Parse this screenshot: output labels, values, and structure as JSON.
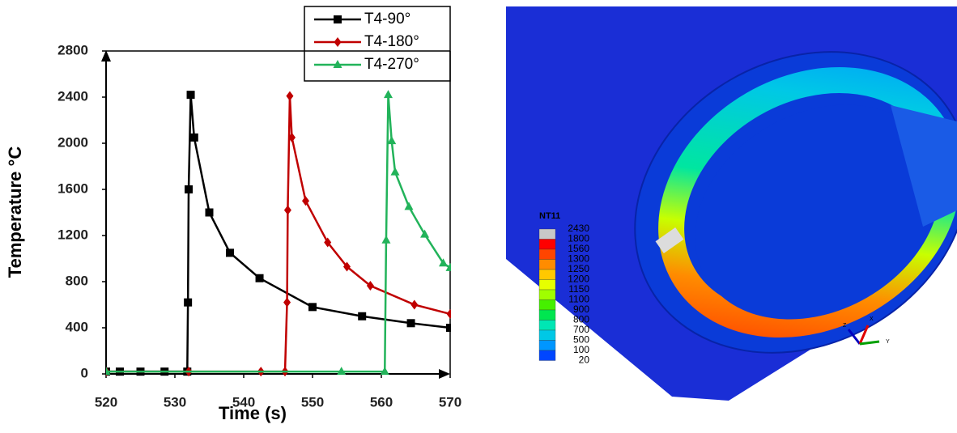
{
  "chart_data": {
    "type": "line",
    "xlabel": "Time (s)",
    "ylabel": "Temperature °C",
    "xlim": [
      520,
      570
    ],
    "xticks": [
      520,
      530,
      540,
      550,
      560,
      570
    ],
    "ylim": [
      0,
      2800
    ],
    "yticks": [
      0,
      400,
      800,
      1200,
      1600,
      2000,
      2400,
      2800
    ],
    "legend": "top-right",
    "series": [
      {
        "name": "T4-90°",
        "color": "#000000",
        "marker": "square",
        "x": [
          520,
          522,
          525,
          528.5,
          531.8,
          531.9,
          532,
          532.3,
          532.8,
          535,
          538,
          542.3,
          550,
          557.2,
          564.3,
          570
        ],
        "values": [
          20,
          20,
          20,
          20,
          20,
          620,
          1600,
          2420,
          2050,
          1400,
          1050,
          830,
          580,
          500,
          440,
          400
        ]
      },
      {
        "name": "T4-180°",
        "color": "#c00000",
        "marker": "diamond",
        "x": [
          520,
          532,
          542.5,
          546,
          546.3,
          546.4,
          546.7,
          547,
          549,
          552.2,
          555,
          558.4,
          564.8,
          570
        ],
        "values": [
          20,
          20,
          20,
          20,
          620,
          1420,
          2410,
          2050,
          1500,
          1140,
          930,
          765,
          600,
          520
        ]
      },
      {
        "name": "T4-270°",
        "color": "#22b35a",
        "marker": "triangle",
        "x": [
          520,
          554.2,
          560.5,
          560.7,
          561,
          561.5,
          562,
          564,
          566.3,
          569,
          570
        ],
        "values": [
          20,
          20,
          20,
          1160,
          2420,
          2020,
          1750,
          1450,
          1210,
          960,
          920
        ]
      }
    ]
  },
  "contour": {
    "title": "NT11",
    "levels": [
      2430,
      1800,
      1560,
      1300,
      1250,
      1200,
      1150,
      1100,
      900,
      800,
      700,
      500,
      100,
      20
    ],
    "colors": [
      "#c8c8c8",
      "#ff0000",
      "#ff4500",
      "#ff8c00",
      "#ffc800",
      "#e6ff00",
      "#a0ff00",
      "#46f000",
      "#00e650",
      "#00e6b4",
      "#00c8e6",
      "#0096ff",
      "#0046ff"
    ],
    "axes": [
      "Z",
      "X",
      "Y"
    ]
  }
}
